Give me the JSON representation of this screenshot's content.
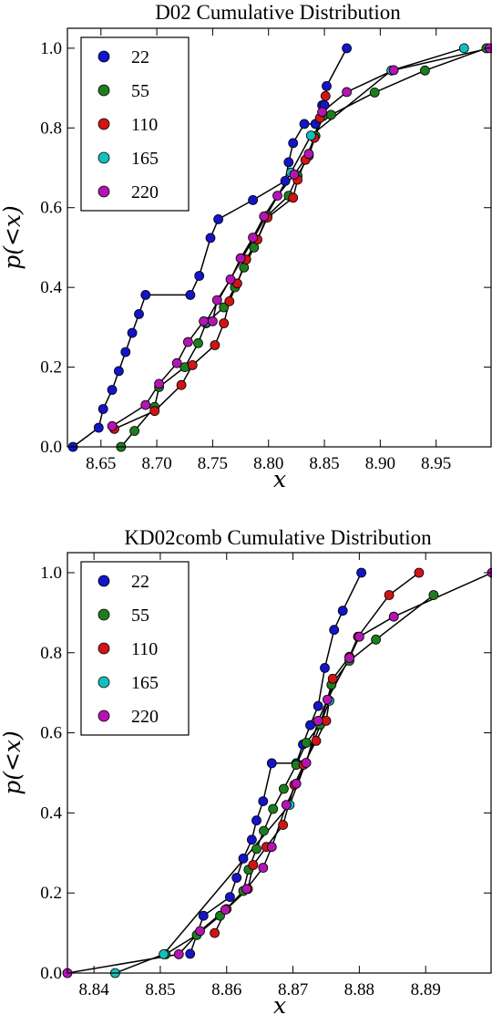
{
  "chart_data": [
    {
      "type": "line",
      "title": "D02 Cumulative Distribution",
      "xlabel": "x",
      "ylabel": "p(<x)",
      "xlim": [
        8.62,
        9.0
      ],
      "ylim": [
        0,
        1.05
      ],
      "xticks": [
        "8.65",
        "8.70",
        "8.75",
        "8.80",
        "8.85",
        "8.90",
        "8.95"
      ],
      "xtick_values": [
        8.65,
        8.7,
        8.75,
        8.8,
        8.85,
        8.9,
        8.95
      ],
      "yticks": [
        "0.0",
        "0.2",
        "0.4",
        "0.6",
        "0.8",
        "1.0"
      ],
      "ytick_values": [
        0.0,
        0.2,
        0.4,
        0.6,
        0.8,
        1.0
      ],
      "grid": false,
      "legend_position": "top-left",
      "series": [
        {
          "name": "22",
          "color": "#1414c8",
          "x": [
            8.625,
            8.648,
            8.652,
            8.66,
            8.666,
            8.672,
            8.678,
            8.684,
            8.69,
            8.73,
            8.738,
            8.748,
            8.755,
            8.786,
            8.815,
            8.818,
            8.822,
            8.832,
            8.842,
            8.848,
            8.85,
            8.852,
            8.87
          ],
          "y": [
            0.0,
            0.048,
            0.095,
            0.143,
            0.19,
            0.238,
            0.286,
            0.333,
            0.381,
            0.381,
            0.429,
            0.524,
            0.571,
            0.619,
            0.667,
            0.714,
            0.762,
            0.81,
            0.81,
            0.857,
            0.857,
            0.905,
            1.0
          ]
        },
        {
          "name": "55",
          "color": "#1e7d1e",
          "x": [
            8.668,
            8.68,
            8.698,
            8.702,
            8.725,
            8.737,
            8.744,
            8.76,
            8.77,
            8.778,
            8.787,
            8.799,
            8.818,
            8.826,
            8.836,
            8.842,
            8.849,
            8.856,
            8.895,
            8.94,
            8.995
          ],
          "y": [
            0.0,
            0.04,
            0.1,
            0.15,
            0.2,
            0.26,
            0.31,
            0.35,
            0.4,
            0.45,
            0.5,
            0.58,
            0.63,
            0.68,
            0.73,
            0.78,
            0.83,
            0.833,
            0.889,
            0.944,
            1.0
          ]
        },
        {
          "name": "110",
          "color": "#d21414",
          "x": [
            8.662,
            8.698,
            8.722,
            8.732,
            8.752,
            8.76,
            8.765,
            8.772,
            8.78,
            8.79,
            8.799,
            8.822,
            8.826,
            8.833,
            8.841,
            8.846,
            8.851
          ],
          "y": [
            0.045,
            0.09,
            0.155,
            0.205,
            0.255,
            0.31,
            0.365,
            0.41,
            0.47,
            0.52,
            0.575,
            0.625,
            0.67,
            0.72,
            0.775,
            0.825,
            0.88
          ]
        },
        {
          "name": "165",
          "color": "#14bebe",
          "x": [
            8.744,
            8.82,
            8.838,
            8.91,
            8.975
          ],
          "y": [
            0.313,
            0.688,
            0.781,
            0.944,
            1.0
          ]
        },
        {
          "name": "220",
          "color": "#b414b4",
          "x": [
            8.66,
            8.69,
            8.702,
            8.718,
            8.728,
            8.742,
            8.75,
            8.754,
            8.766,
            8.775,
            8.786,
            8.796,
            8.808,
            8.823,
            8.836,
            8.848,
            8.87,
            8.912,
            8.998
          ],
          "y": [
            0.052,
            0.105,
            0.158,
            0.21,
            0.263,
            0.315,
            0.315,
            0.368,
            0.42,
            0.473,
            0.525,
            0.578,
            0.63,
            0.683,
            0.735,
            0.84,
            0.89,
            0.945,
            1.0
          ]
        }
      ]
    },
    {
      "type": "line",
      "title": "KD02comb Cumulative Distribution",
      "xlabel": "x",
      "ylabel": "p(<x)",
      "xlim": [
        8.836,
        8.9
      ],
      "ylim": [
        0,
        1.05
      ],
      "xticks": [
        "8.84",
        "8.85",
        "8.86",
        "8.87",
        "8.88",
        "8.89"
      ],
      "xtick_values": [
        8.84,
        8.85,
        8.86,
        8.87,
        8.88,
        8.89
      ],
      "yticks": [
        "0.0",
        "0.2",
        "0.4",
        "0.6",
        "0.8",
        "1.0"
      ],
      "ytick_values": [
        0.0,
        0.2,
        0.4,
        0.6,
        0.8,
        1.0
      ],
      "grid": false,
      "legend_position": "top-left",
      "series": [
        {
          "name": "22",
          "color": "#1414c8",
          "x": [
            8.8545,
            8.8565,
            8.8605,
            8.8615,
            8.8625,
            8.8638,
            8.8645,
            8.8655,
            8.8668,
            8.8705,
            8.8715,
            8.8726,
            8.8738,
            8.8748,
            8.8762,
            8.8775,
            8.8803
          ],
          "y": [
            0.048,
            0.143,
            0.19,
            0.238,
            0.286,
            0.333,
            0.381,
            0.429,
            0.524,
            0.524,
            0.571,
            0.619,
            0.667,
            0.762,
            0.857,
            0.905,
            1.0
          ]
        },
        {
          "name": "55",
          "color": "#1e7d1e",
          "x": [
            8.8508,
            8.8555,
            8.859,
            8.8625,
            8.8633,
            8.8645,
            8.8656,
            8.867,
            8.8686,
            8.8705,
            8.872,
            8.8741,
            8.8758,
            8.8785,
            8.8825,
            8.8912
          ],
          "y": [
            0.047,
            0.095,
            0.143,
            0.205,
            0.258,
            0.31,
            0.355,
            0.41,
            0.46,
            0.52,
            0.575,
            0.62,
            0.72,
            0.78,
            0.833,
            0.944
          ]
        },
        {
          "name": "110",
          "color": "#d21414",
          "x": [
            8.8582,
            8.86,
            8.8632,
            8.864,
            8.866,
            8.8685,
            8.8702,
            8.8716,
            8.8735,
            8.875,
            8.876,
            8.8785,
            8.8798,
            8.8845,
            8.889
          ],
          "y": [
            0.1,
            0.16,
            0.21,
            0.27,
            0.315,
            0.37,
            0.47,
            0.52,
            0.58,
            0.63,
            0.735,
            0.79,
            0.84,
            0.944,
            1.0
          ]
        },
        {
          "name": "165",
          "color": "#14bebe",
          "x": [
            8.8432,
            8.8505,
            8.8695,
            8.8755
          ],
          "y": [
            0.0,
            0.047,
            0.42,
            0.68
          ]
        },
        {
          "name": "220",
          "color": "#b414b4",
          "x": [
            8.836,
            8.8528,
            8.856,
            8.8598,
            8.863,
            8.8655,
            8.8668,
            8.869,
            8.8705,
            8.872,
            8.8738,
            8.8752,
            8.8785,
            8.88,
            8.8852,
            8.9
          ],
          "y": [
            0.0,
            0.047,
            0.105,
            0.158,
            0.21,
            0.263,
            0.315,
            0.42,
            0.473,
            0.525,
            0.63,
            0.683,
            0.787,
            0.84,
            0.89,
            1.0
          ]
        }
      ]
    }
  ]
}
